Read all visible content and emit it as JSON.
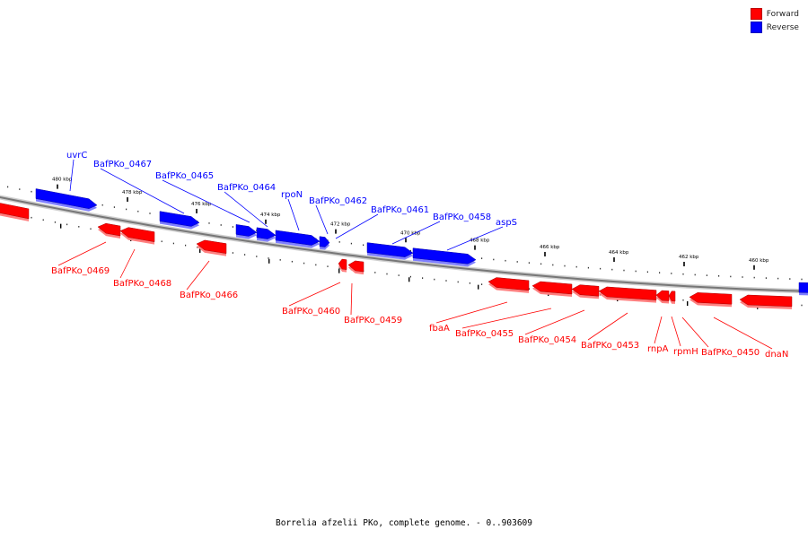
{
  "caption": "Borrelia afzelii PKo, complete genome. - 0..903609",
  "legend": [
    {
      "label": "Forward",
      "color": "#ff0000"
    },
    {
      "label": "Reverse",
      "color": "#0000ff"
    }
  ],
  "colors": {
    "forward": "#ff0000",
    "reverse": "#0000ff",
    "backbone": "#9a9a9a"
  },
  "ticks": [
    {
      "label": "480 kbp"
    },
    {
      "label": "478 kbp"
    },
    {
      "label": "476 kbp"
    },
    {
      "label": "474 kbp"
    },
    {
      "label": "472 kbp"
    },
    {
      "label": "470 kbp"
    },
    {
      "label": "468 kbp"
    },
    {
      "label": "466 kbp"
    },
    {
      "label": "464 kbp"
    },
    {
      "label": "462 kbp"
    },
    {
      "label": "460 kbp"
    }
  ],
  "genes": [
    {
      "label": "uvrC",
      "strand": "reverse"
    },
    {
      "label": "BafPKo_0467",
      "strand": "reverse"
    },
    {
      "label": "BafPKo_0465",
      "strand": "reverse"
    },
    {
      "label": "BafPKo_0464",
      "strand": "reverse"
    },
    {
      "label": "rpoN",
      "strand": "reverse"
    },
    {
      "label": "BafPKo_0462",
      "strand": "reverse"
    },
    {
      "label": "BafPKo_0461",
      "strand": "reverse"
    },
    {
      "label": "BafPKo_0458",
      "strand": "reverse"
    },
    {
      "label": "aspS",
      "strand": "reverse"
    },
    {
      "label": "BafPKo_0469",
      "strand": "forward"
    },
    {
      "label": "BafPKo_0468",
      "strand": "forward"
    },
    {
      "label": "BafPKo_0466",
      "strand": "forward"
    },
    {
      "label": "BafPKo_0460",
      "strand": "forward"
    },
    {
      "label": "BafPKo_0459",
      "strand": "forward"
    },
    {
      "label": "fbaA",
      "strand": "forward"
    },
    {
      "label": "BafPKo_0455",
      "strand": "forward"
    },
    {
      "label": "BafPKo_0454",
      "strand": "forward"
    },
    {
      "label": "BafPKo_0453",
      "strand": "forward"
    },
    {
      "label": "rnpA",
      "strand": "forward"
    },
    {
      "label": "rpmH",
      "strand": "forward"
    },
    {
      "label": "BafPKo_0450",
      "strand": "forward"
    },
    {
      "label": "dnaN",
      "strand": "forward"
    }
  ]
}
